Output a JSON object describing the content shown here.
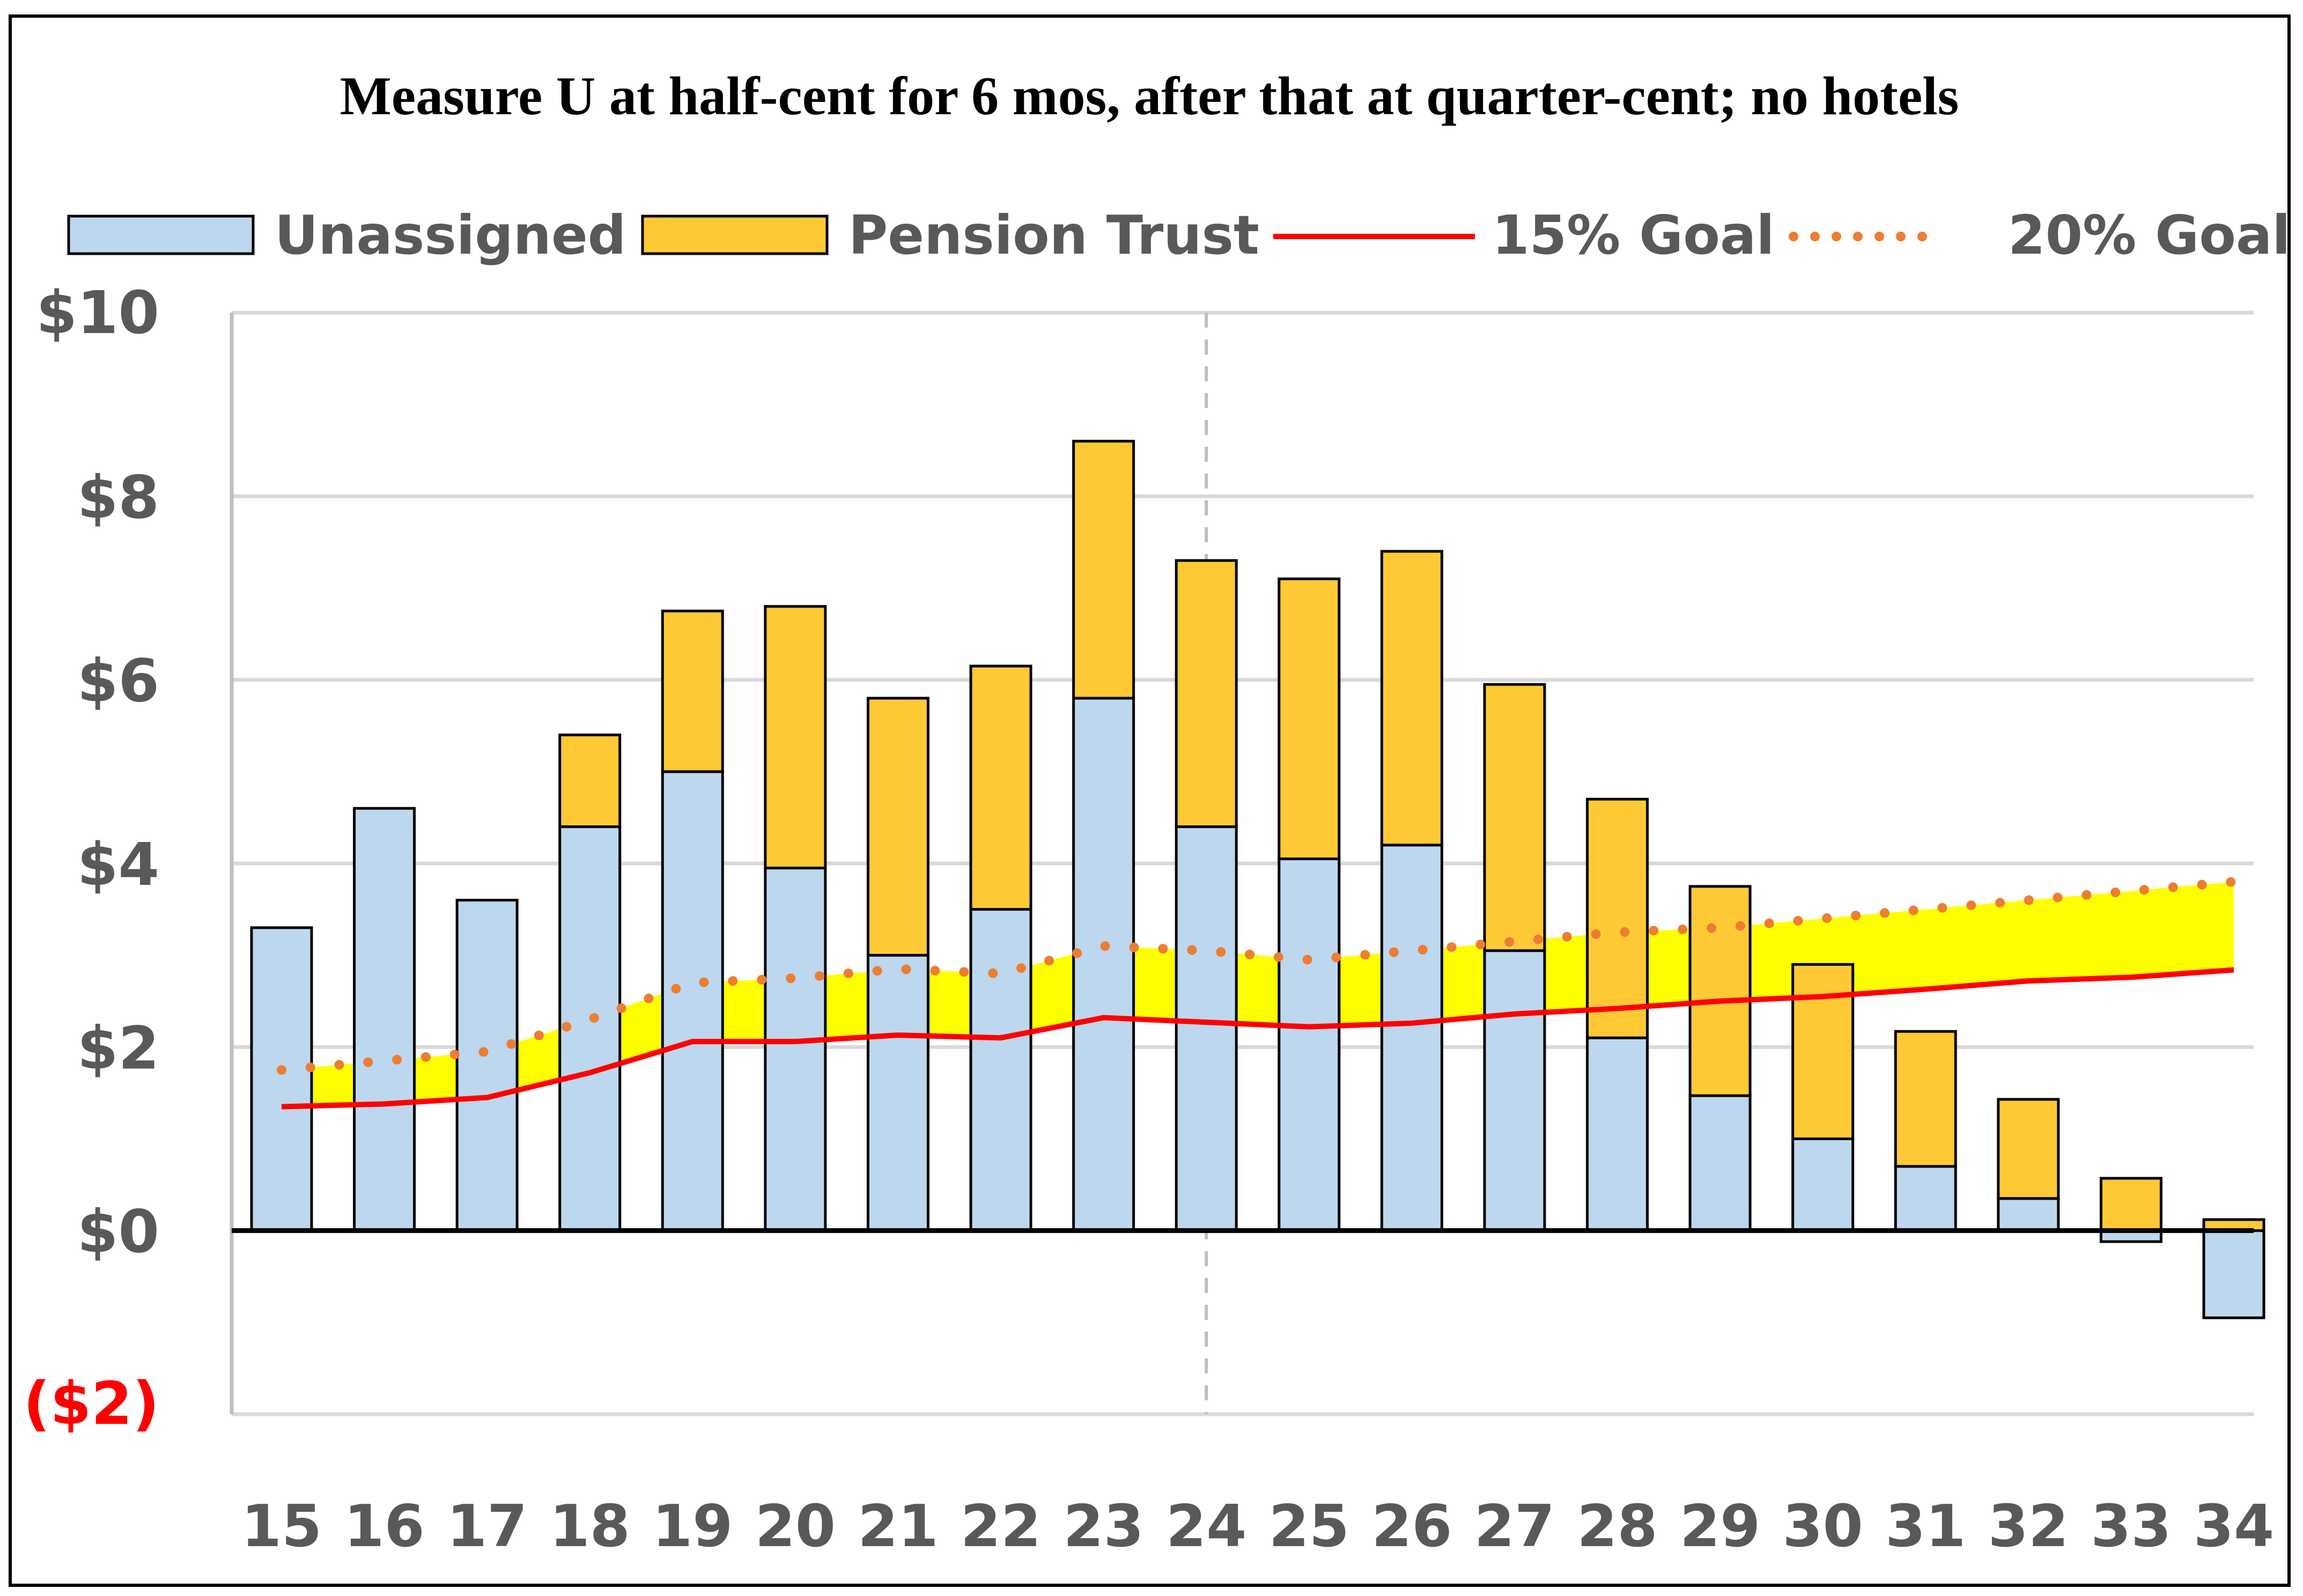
{
  "chart_data": {
    "type": "bar",
    "title": "Measure U at half-cent for 6 mos, after that at quarter-cent; no hotels",
    "xlabel": "",
    "ylabel": "",
    "categories": [
      "15",
      "16",
      "17",
      "18",
      "19",
      "20",
      "21",
      "22",
      "23",
      "24",
      "25",
      "26",
      "27",
      "28",
      "29",
      "30",
      "31",
      "32",
      "33",
      "34"
    ],
    "ylim": [
      -2,
      10
    ],
    "yticks": [
      {
        "value": 10,
        "label": "$10"
      },
      {
        "value": 8,
        "label": "$8"
      },
      {
        "value": 6,
        "label": "$6"
      },
      {
        "value": 4,
        "label": "$4"
      },
      {
        "value": 2,
        "label": "$2"
      },
      {
        "value": 0,
        "label": "$0"
      },
      {
        "value": -2,
        "label": "($2)"
      }
    ],
    "grid": true,
    "legend_position": "top",
    "reference_line_x": "24",
    "series": [
      {
        "name": "Unassigned",
        "kind": "bar",
        "stack": "total",
        "color": "#bdd7ee",
        "values": [
          3.3,
          4.6,
          3.6,
          4.4,
          5.0,
          3.95,
          3.0,
          3.5,
          5.8,
          4.4,
          4.05,
          4.2,
          3.05,
          2.1,
          1.47,
          1.0,
          0.7,
          0.35,
          -0.12,
          -0.95
        ]
      },
      {
        "name": "Pension Trust",
        "kind": "bar",
        "stack": "total",
        "color": "#ffc935",
        "values": [
          0,
          0,
          0,
          1.0,
          1.75,
          2.85,
          2.8,
          2.65,
          2.8,
          2.9,
          3.05,
          3.2,
          2.9,
          2.6,
          2.28,
          1.9,
          1.47,
          1.08,
          0.57,
          0.12
        ]
      },
      {
        "name": "15% Goal",
        "kind": "line",
        "color": "#ff0000",
        "values": [
          1.35,
          1.38,
          1.45,
          1.72,
          2.06,
          2.06,
          2.13,
          2.1,
          2.32,
          2.27,
          2.22,
          2.26,
          2.36,
          2.42,
          2.5,
          2.55,
          2.63,
          2.72,
          2.76,
          2.84
        ]
      },
      {
        "name": "20% Goal",
        "kind": "line",
        "style": "dotted",
        "color": "#ed7d31",
        "values": [
          1.75,
          1.85,
          1.95,
          2.3,
          2.7,
          2.75,
          2.85,
          2.8,
          3.1,
          3.05,
          2.95,
          3.05,
          3.15,
          3.25,
          3.3,
          3.4,
          3.5,
          3.6,
          3.7,
          3.8
        ]
      }
    ],
    "band_color": "#ffff00"
  }
}
